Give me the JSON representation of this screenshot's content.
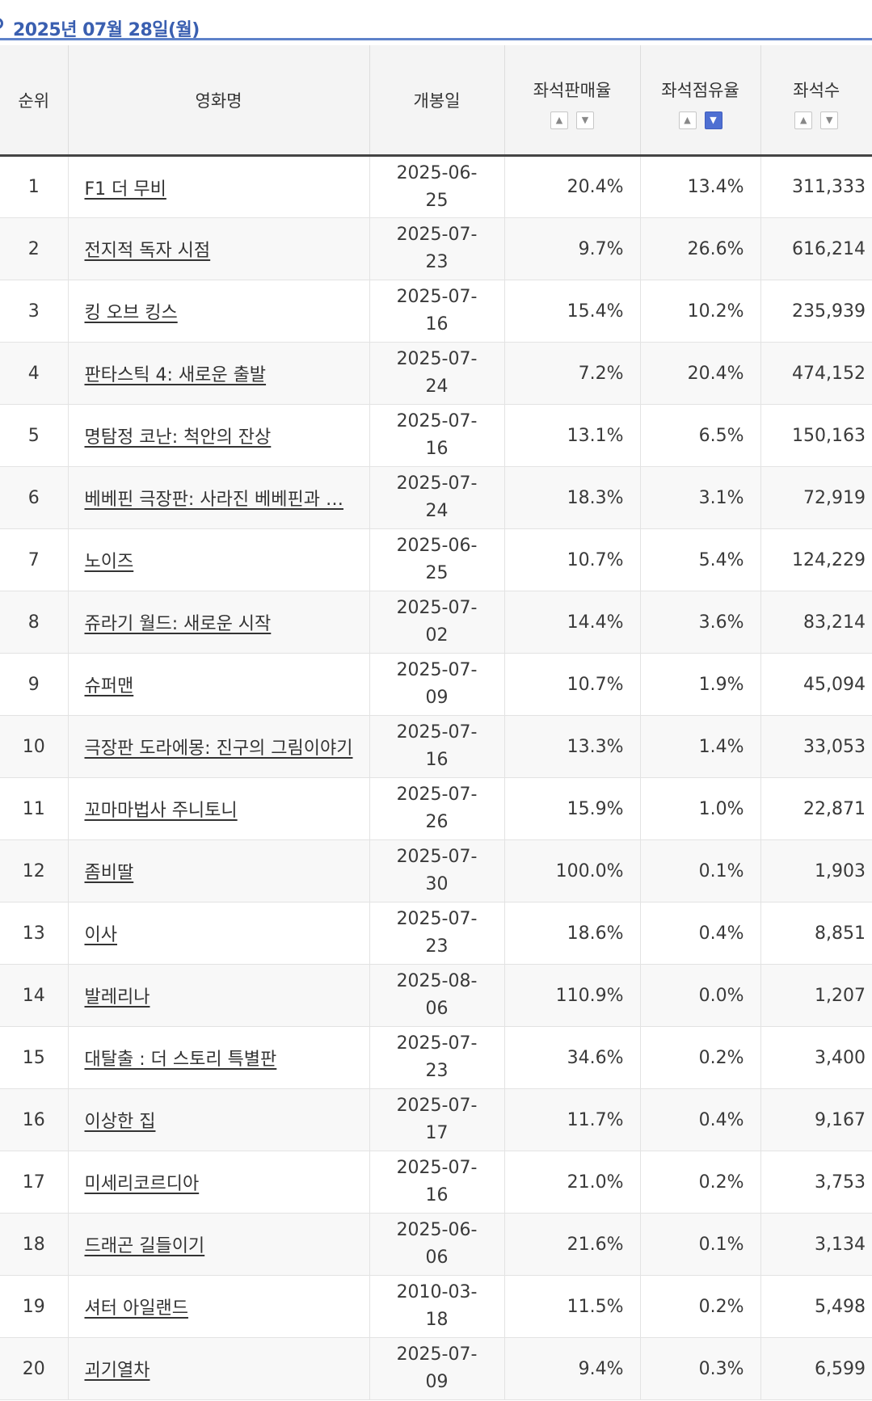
{
  "date_header": "2025년 07월 28일(월)",
  "columns": {
    "rank": "순위",
    "title": "영화명",
    "open_date": "개봉일",
    "sales_rate": "좌석판매율",
    "share_rate": "좌석점유율",
    "seats": "좌석수"
  },
  "sort_icons": {
    "up": "chevron-up-icon",
    "down": "chevron-down-icon"
  },
  "active_sort": "share_rate-desc",
  "colors": {
    "accent": "#3a5fb0",
    "active_sort_bg": "#4e6fd2"
  },
  "rows": [
    {
      "rank": "1",
      "title": "F1 더 무비",
      "open_date": "2025-06-25",
      "sales_rate": "20.4%",
      "share_rate": "13.4%",
      "seats": "311,333"
    },
    {
      "rank": "2",
      "title": "전지적 독자 시점",
      "open_date": "2025-07-23",
      "sales_rate": "9.7%",
      "share_rate": "26.6%",
      "seats": "616,214"
    },
    {
      "rank": "3",
      "title": "킹 오브 킹스",
      "open_date": "2025-07-16",
      "sales_rate": "15.4%",
      "share_rate": "10.2%",
      "seats": "235,939"
    },
    {
      "rank": "4",
      "title": "판타스틱 4: 새로운 출발",
      "open_date": "2025-07-24",
      "sales_rate": "7.2%",
      "share_rate": "20.4%",
      "seats": "474,152"
    },
    {
      "rank": "5",
      "title": "명탐정 코난: 척안의 잔상",
      "open_date": "2025-07-16",
      "sales_rate": "13.1%",
      "share_rate": "6.5%",
      "seats": "150,163"
    },
    {
      "rank": "6",
      "title": "베베핀 극장판: 사라진 베베핀과 …",
      "open_date": "2025-07-24",
      "sales_rate": "18.3%",
      "share_rate": "3.1%",
      "seats": "72,919"
    },
    {
      "rank": "7",
      "title": "노이즈",
      "open_date": "2025-06-25",
      "sales_rate": "10.7%",
      "share_rate": "5.4%",
      "seats": "124,229"
    },
    {
      "rank": "8",
      "title": "쥬라기 월드: 새로운 시작",
      "open_date": "2025-07-02",
      "sales_rate": "14.4%",
      "share_rate": "3.6%",
      "seats": "83,214"
    },
    {
      "rank": "9",
      "title": "슈퍼맨",
      "open_date": "2025-07-09",
      "sales_rate": "10.7%",
      "share_rate": "1.9%",
      "seats": "45,094"
    },
    {
      "rank": "10",
      "title": "극장판 도라에몽: 진구의 그림이야기",
      "open_date": "2025-07-16",
      "sales_rate": "13.3%",
      "share_rate": "1.4%",
      "seats": "33,053"
    },
    {
      "rank": "11",
      "title": "꼬마마법사 주니토니",
      "open_date": "2025-07-26",
      "sales_rate": "15.9%",
      "share_rate": "1.0%",
      "seats": "22,871"
    },
    {
      "rank": "12",
      "title": "좀비딸",
      "open_date": "2025-07-30",
      "sales_rate": "100.0%",
      "share_rate": "0.1%",
      "seats": "1,903"
    },
    {
      "rank": "13",
      "title": "이사",
      "open_date": "2025-07-23",
      "sales_rate": "18.6%",
      "share_rate": "0.4%",
      "seats": "8,851"
    },
    {
      "rank": "14",
      "title": "발레리나",
      "open_date": "2025-08-06",
      "sales_rate": "110.9%",
      "share_rate": "0.0%",
      "seats": "1,207"
    },
    {
      "rank": "15",
      "title": "대탈출 : 더 스토리 특별판",
      "open_date": "2025-07-23",
      "sales_rate": "34.6%",
      "share_rate": "0.2%",
      "seats": "3,400"
    },
    {
      "rank": "16",
      "title": "이상한 집",
      "open_date": "2025-07-17",
      "sales_rate": "11.7%",
      "share_rate": "0.4%",
      "seats": "9,167"
    },
    {
      "rank": "17",
      "title": "미세리코르디아",
      "open_date": "2025-07-16",
      "sales_rate": "21.0%",
      "share_rate": "0.2%",
      "seats": "3,753"
    },
    {
      "rank": "18",
      "title": "드래곤 길들이기",
      "open_date": "2025-06-06",
      "sales_rate": "21.6%",
      "share_rate": "0.1%",
      "seats": "3,134"
    },
    {
      "rank": "19",
      "title": "셔터 아일랜드",
      "open_date": "2010-03-18",
      "sales_rate": "11.5%",
      "share_rate": "0.2%",
      "seats": "5,498"
    },
    {
      "rank": "20",
      "title": "괴기열차",
      "open_date": "2025-07-09",
      "sales_rate": "9.4%",
      "share_rate": "0.3%",
      "seats": "6,599"
    }
  ]
}
